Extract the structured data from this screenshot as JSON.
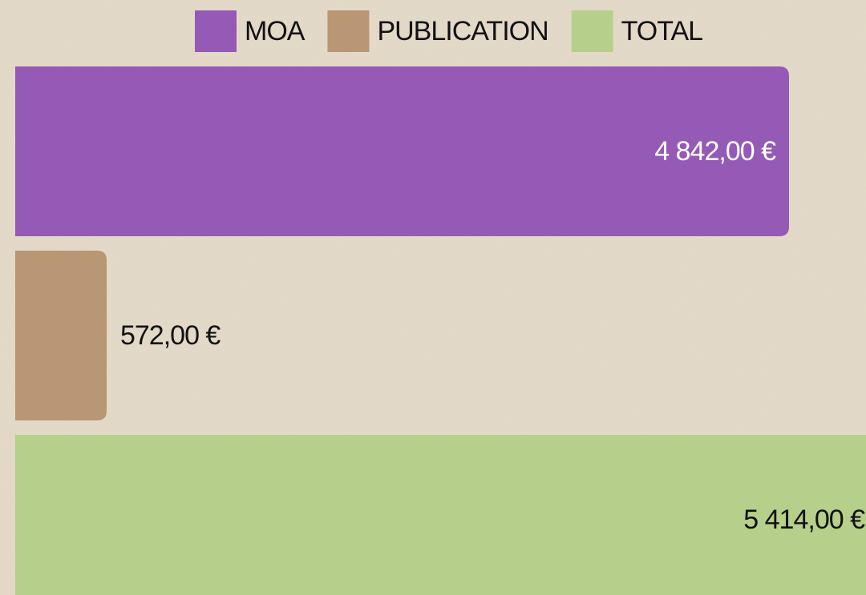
{
  "chart_data": {
    "type": "bar",
    "orientation": "horizontal",
    "categories": [
      "MOA",
      "PUBLICATION",
      "TOTAL"
    ],
    "values": [
      4842,
      572,
      5414
    ],
    "value_labels": [
      "4 842,00 €",
      "572,00 €",
      "5 414,00 €"
    ],
    "colors": [
      "#9559b6",
      "#b99674",
      "#b6d08b"
    ]
  }
}
